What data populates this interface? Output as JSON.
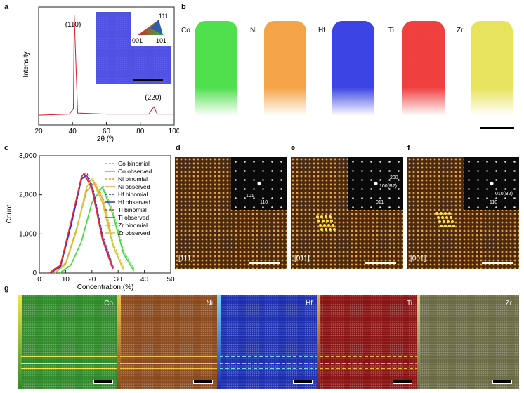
{
  "panels": {
    "a": {
      "letter": "a",
      "ylabel": "Intensity",
      "xlabel": "2θ (º)",
      "peak1": "(110)",
      "peak2": "(220)",
      "xticks": [
        "20",
        "40",
        "60",
        "80",
        "100"
      ],
      "legend_tri": {
        "top": "111",
        "left": "001",
        "right": "101"
      },
      "trace_color": "#d81b1b"
    },
    "b": {
      "letter": "b",
      "elements": [
        {
          "name": "Co",
          "color": "#3ddc3a"
        },
        {
          "name": "Ni",
          "color": "#f39a34"
        },
        {
          "name": "Hf",
          "color": "#2630e0"
        },
        {
          "name": "Ti",
          "color": "#ee2a2a"
        },
        {
          "name": "Zr",
          "color": "#e6e04a"
        }
      ]
    },
    "c": {
      "letter": "c",
      "ylabel": "Count",
      "xlabel": "Concentration (%)",
      "yticks": [
        "0",
        "1,000",
        "2,000",
        "3,000"
      ],
      "xticks": [
        "0",
        "10",
        "20",
        "30",
        "40",
        "50"
      ],
      "legend": [
        {
          "label": "Co binomial",
          "color": "#3ddc3a",
          "dash": true
        },
        {
          "label": "Co observed",
          "color": "#3ddc3a",
          "dash": false
        },
        {
          "label": "Ni binomial",
          "color": "#f39a34",
          "dash": true
        },
        {
          "label": "Ni observed",
          "color": "#f39a34",
          "dash": false
        },
        {
          "label": "Hf binomial",
          "color": "#2630e0",
          "dash": true
        },
        {
          "label": "Hf observed",
          "color": "#2630e0",
          "dash": false
        },
        {
          "label": "Ti binomial",
          "color": "#ee2a2a",
          "dash": true
        },
        {
          "label": "Ti observed",
          "color": "#ee2a2a",
          "dash": false
        },
        {
          "label": "Zr binomial",
          "color": "#d4c83c",
          "dash": true
        },
        {
          "label": "Zr observed",
          "color": "#d4c83c",
          "dash": false
        }
      ]
    },
    "d": {
      "letter": "d",
      "zone": "[111]",
      "fft": [
        "101",
        "110"
      ]
    },
    "e": {
      "letter": "e",
      "zone": "[011]",
      "fft": [
        "200",
        "100(B2)",
        "011"
      ]
    },
    "f": {
      "letter": "f",
      "zone": "[001]",
      "fft": [
        "010(B2)",
        "110"
      ]
    },
    "g": {
      "letter": "g",
      "maps": [
        {
          "name": "Co",
          "bg": "#2f8a2a",
          "line": "#f2e64a",
          "dashed": false
        },
        {
          "name": "Ni",
          "bg": "#8a4a1e",
          "line": "#f2c04a",
          "dashed": false
        },
        {
          "name": "Hf",
          "bg": "#1d2fb0",
          "line": "#7ad8ff",
          "dashed": true
        },
        {
          "name": "Ti",
          "bg": "#8a1414",
          "line": "#e8b830",
          "dashed": true
        },
        {
          "name": "Zr",
          "bg": "#6a6a44",
          "line": "#d9d28a",
          "dashed": false
        }
      ]
    }
  },
  "chart_data": [
    {
      "type": "line",
      "panel": "a",
      "xlabel": "2θ (º)",
      "ylabel": "Intensity",
      "xlim": [
        20,
        100
      ],
      "series": [
        {
          "name": "",
          "x": [
            20,
            38,
            40.5,
            41,
            43,
            60,
            85,
            88,
            90,
            100
          ],
          "y": [
            0.04,
            0.05,
            0.1,
            1.0,
            0.06,
            0.05,
            0.05,
            0.12,
            0.05,
            0.05
          ]
        }
      ],
      "annotations": [
        "(110)",
        "(220)"
      ]
    },
    {
      "type": "line",
      "panel": "c",
      "xlabel": "Concentration (%)",
      "ylabel": "Count",
      "xlim": [
        0,
        50
      ],
      "ylim": [
        0,
        3000
      ],
      "series": [
        {
          "name": "Co observed",
          "x": [
            8,
            12,
            16,
            20,
            24,
            28,
            32,
            36
          ],
          "y": [
            0,
            200,
            800,
            1800,
            2200,
            1500,
            500,
            50
          ]
        },
        {
          "name": "Ni observed",
          "x": [
            6,
            10,
            14,
            18,
            21,
            24,
            28,
            32
          ],
          "y": [
            0,
            250,
            1100,
            2100,
            2300,
            1900,
            700,
            80
          ]
        },
        {
          "name": "Hf observed",
          "x": [
            4,
            8,
            12,
            16,
            18,
            20,
            24,
            28
          ],
          "y": [
            0,
            150,
            1200,
            2400,
            2500,
            2200,
            900,
            100
          ]
        },
        {
          "name": "Ti observed",
          "x": [
            4,
            8,
            12,
            16,
            17,
            20,
            24,
            28
          ],
          "y": [
            0,
            200,
            1300,
            2450,
            2550,
            2150,
            850,
            90
          ]
        },
        {
          "name": "Zr observed",
          "x": [
            6,
            10,
            14,
            18,
            20,
            24,
            28,
            32
          ],
          "y": [
            0,
            220,
            1050,
            2200,
            2400,
            1800,
            700,
            80
          ]
        }
      ]
    }
  ]
}
